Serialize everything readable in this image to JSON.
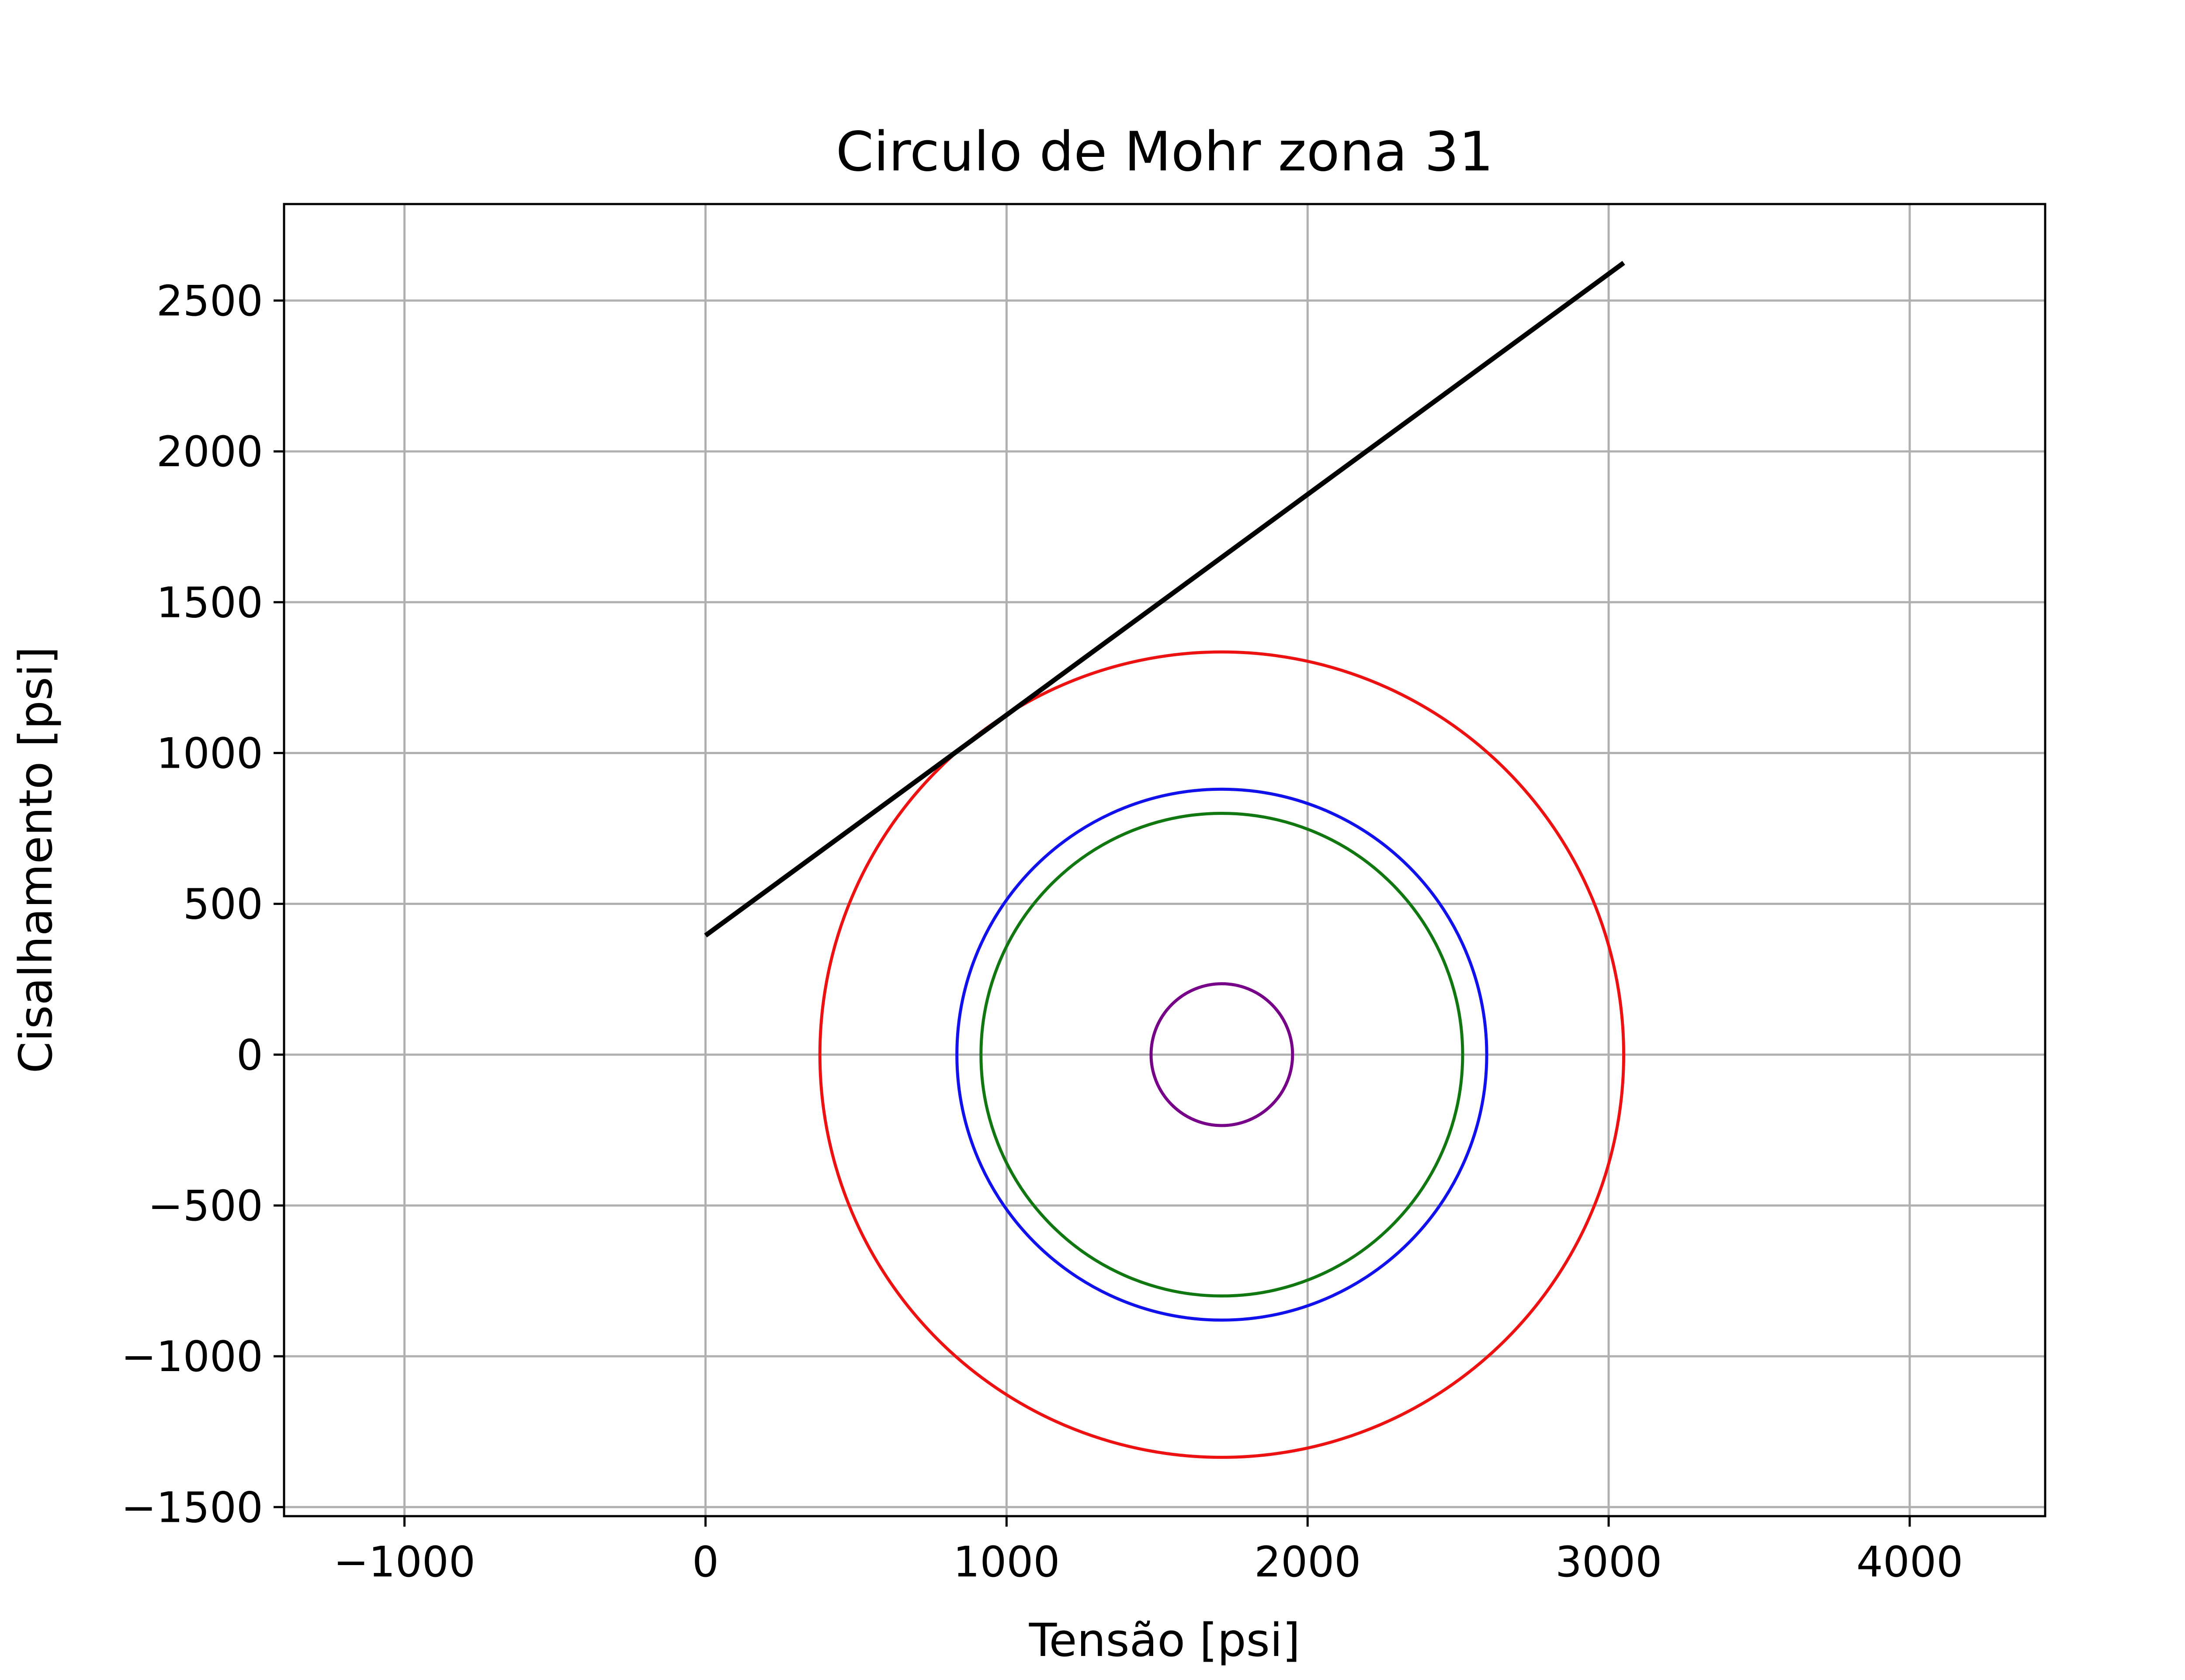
{
  "chart_data": {
    "type": "line",
    "title": "Circulo de Mohr zona 31",
    "xlabel": "Tensão [psi]",
    "ylabel": "Cisalhamento [psi]",
    "xlim": [
      -1400,
      4450
    ],
    "ylim": [
      -1530,
      2820
    ],
    "grid": true,
    "xticks": [
      -1000,
      0,
      1000,
      2000,
      3000,
      4000
    ],
    "xtick_labels": [
      "−1000",
      "0",
      "1000",
      "2000",
      "3000",
      "4000"
    ],
    "yticks": [
      -1500,
      -1000,
      -500,
      0,
      500,
      1000,
      1500,
      2000,
      2500
    ],
    "ytick_labels": [
      "−1500",
      "−1000",
      "−500",
      "0",
      "500",
      "1000",
      "1500",
      "2000",
      "2500"
    ],
    "circles": [
      {
        "center": [
          1715,
          0
        ],
        "radius": 1335,
        "color": "#ee1111"
      },
      {
        "center": [
          1715,
          0
        ],
        "radius": 880,
        "color": "#1111ee"
      },
      {
        "center": [
          1715,
          0
        ],
        "radius": 800,
        "color": "#117711"
      },
      {
        "center": [
          1715,
          0
        ],
        "radius": 235,
        "color": "#770088"
      }
    ],
    "lines": [
      {
        "x": [
          0,
          3050
        ],
        "y": [
          395,
          2625
        ],
        "color": "#000000"
      }
    ]
  }
}
